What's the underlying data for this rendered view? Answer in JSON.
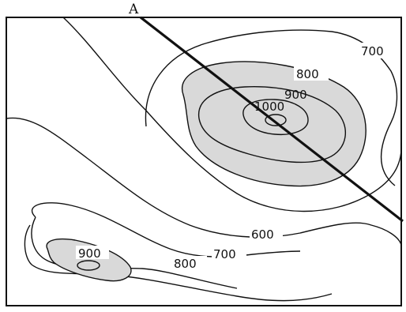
{
  "map": {
    "point_label": "A",
    "contour_labels": {
      "c700_right": "700",
      "c800_peak": "800",
      "c900_peak": "900",
      "c1000_peak": "1000",
      "c600": "600",
      "c700_lower": "700",
      "c800_lower": "800",
      "c900_small_hill": "900"
    },
    "shading_color": "#d9d9d9",
    "line_color": "#111111"
  }
}
